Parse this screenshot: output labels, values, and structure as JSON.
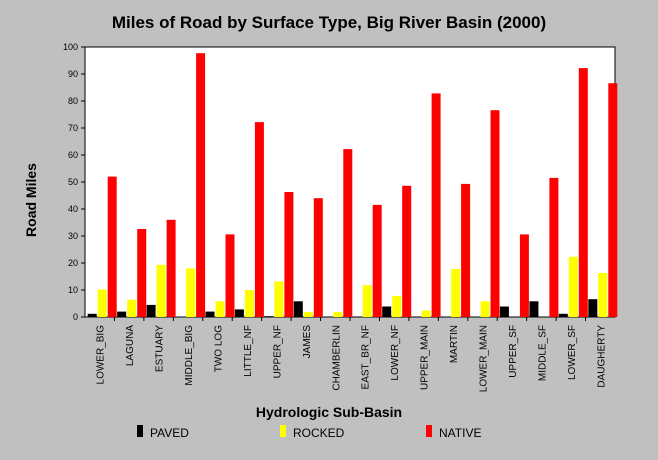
{
  "chart_data": {
    "type": "bar",
    "title": "Miles of Road by Surface Type, Big River Basin (2000)",
    "xlabel": "Hydrologic Sub-Basin",
    "ylabel": "Road Miles",
    "ylim": [
      0,
      100
    ],
    "yticks": [
      0,
      10,
      20,
      30,
      40,
      50,
      60,
      70,
      80,
      90,
      100
    ],
    "grid": false,
    "legend_position": "bottom",
    "categories": [
      "LOWER_BIG",
      "LAGUNA",
      "ESTUARY",
      "MIDDLE_BIG",
      "TWO LOG",
      "LITTLE_NF",
      "UPPER_NF",
      "JAMES",
      "CHAMBERLIN",
      "EAST_BR_NF",
      "LOWER_NF",
      "UPPER_MAIN",
      "MARTIN",
      "LOWER_MAIN",
      "UPPER_SF",
      "MIDDLE_SF",
      "LOWER_SF",
      "DAUGHERTY"
    ],
    "series": [
      {
        "name": "PAVED",
        "color": "#000000",
        "values": [
          1.2,
          2.0,
          4.5,
          0,
          2.0,
          2.8,
          0.3,
          5.8,
          0,
          0,
          3.9,
          0,
          0,
          0,
          3.9,
          5.8,
          1.2,
          6.6
        ]
      },
      {
        "name": "ROCKED",
        "color": "#ffff00",
        "values": [
          10.2,
          6.4,
          19.3,
          18.0,
          5.8,
          10.0,
          13.2,
          1.8,
          1.8,
          11.8,
          7.8,
          2.4,
          17.8,
          5.8,
          0,
          0,
          22.3,
          16.3
        ]
      },
      {
        "name": "NATIVE",
        "color": "#ff0000",
        "values": [
          52.0,
          32.6,
          36.0,
          97.7,
          30.6,
          72.2,
          46.3,
          44.0,
          62.2,
          41.5,
          48.6,
          82.8,
          49.3,
          76.6,
          30.6,
          51.5,
          92.2,
          86.6
        ]
      }
    ]
  }
}
